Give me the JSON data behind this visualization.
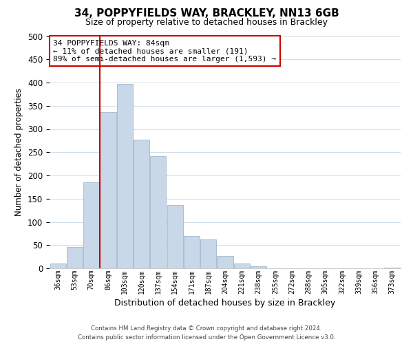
{
  "title": "34, POPPYFIELDS WAY, BRACKLEY, NN13 6GB",
  "subtitle": "Size of property relative to detached houses in Brackley",
  "xlabel": "Distribution of detached houses by size in Brackley",
  "ylabel": "Number of detached properties",
  "bar_labels": [
    "36sqm",
    "53sqm",
    "70sqm",
    "86sqm",
    "103sqm",
    "120sqm",
    "137sqm",
    "154sqm",
    "171sqm",
    "187sqm",
    "204sqm",
    "221sqm",
    "238sqm",
    "255sqm",
    "272sqm",
    "288sqm",
    "305sqm",
    "322sqm",
    "339sqm",
    "356sqm",
    "373sqm"
  ],
  "bar_values": [
    10,
    46,
    185,
    337,
    397,
    277,
    242,
    137,
    70,
    62,
    26,
    10,
    4,
    0,
    0,
    0,
    0,
    0,
    0,
    0,
    2
  ],
  "bar_color": "#c8d8e8",
  "bar_edge_color": "#a0b8cc",
  "vline_color": "#cc0000",
  "annotation_line1": "34 POPPYFIELDS WAY: 84sqm",
  "annotation_line2": "← 11% of detached houses are smaller (191)",
  "annotation_line3": "89% of semi-detached houses are larger (1,593) →",
  "annotation_box_facecolor": "white",
  "annotation_box_edgecolor": "#cc0000",
  "ylim": [
    0,
    500
  ],
  "yticks": [
    0,
    50,
    100,
    150,
    200,
    250,
    300,
    350,
    400,
    450,
    500
  ],
  "footer_line1": "Contains HM Land Registry data © Crown copyright and database right 2024.",
  "footer_line2": "Contains public sector information licensed under the Open Government Licence v3.0.",
  "background_color": "#ffffff",
  "grid_color": "#d0dde8",
  "title_fontsize": 11,
  "subtitle_fontsize": 9
}
